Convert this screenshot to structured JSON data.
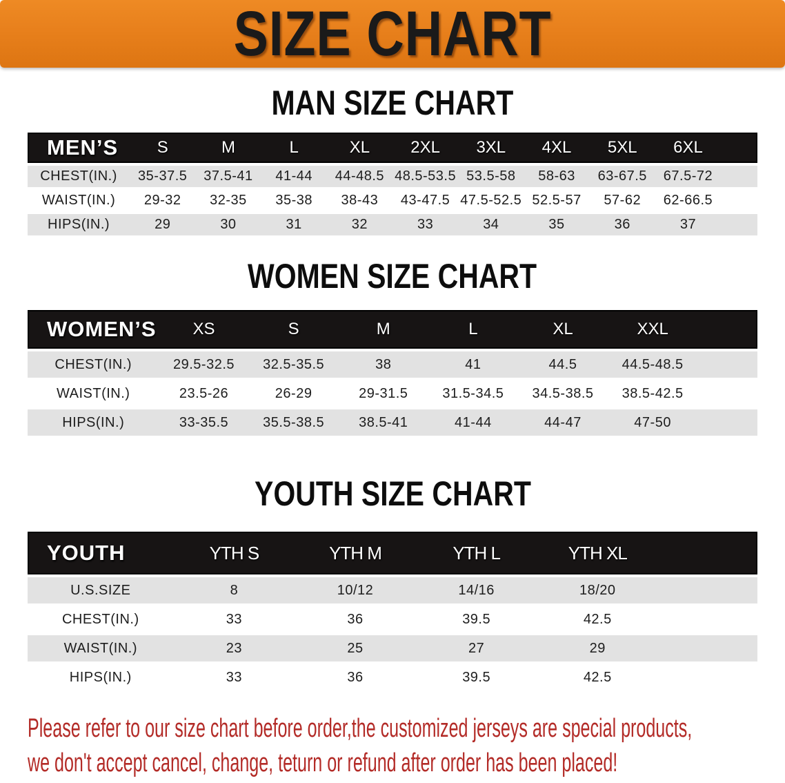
{
  "banner": {
    "title": "SIZE CHART",
    "background_color": "#E8801C",
    "title_color": "#1A1A1A"
  },
  "sections": [
    {
      "id": "men",
      "title": "MAN SIZE CHART",
      "header_label": "MEN’S",
      "columns": [
        "S",
        "M",
        "L",
        "XL",
        "2XL",
        "3XL",
        "4XL",
        "5XL",
        "6XL"
      ],
      "rows": [
        {
          "label": "CHEST(IN.)",
          "values": [
            "35-37.5",
            "37.5-41",
            "41-44",
            "44-48.5",
            "48.5-53.5",
            "53.5-58",
            "58-63",
            "63-67.5",
            "67.5-72"
          ]
        },
        {
          "label": "WAIST(IN.)",
          "values": [
            "29-32",
            "32-35",
            "35-38",
            "38-43",
            "43-47.5",
            "47.5-52.5",
            "52.5-57",
            "57-62",
            "62-66.5"
          ]
        },
        {
          "label": "HIPS(IN.)",
          "values": [
            "29",
            "30",
            "31",
            "32",
            "33",
            "34",
            "35",
            "36",
            "37"
          ]
        }
      ]
    },
    {
      "id": "women",
      "title": "WOMEN SIZE CHART",
      "header_label": "WOMEN’S",
      "columns": [
        "XS",
        "S",
        "M",
        "L",
        "XL",
        "XXL"
      ],
      "rows": [
        {
          "label": "CHEST(IN.)",
          "values": [
            "29.5-32.5",
            "32.5-35.5",
            "38",
            "41",
            "44.5",
            "44.5-48.5"
          ]
        },
        {
          "label": "WAIST(IN.)",
          "values": [
            "23.5-26",
            "26-29",
            "29-31.5",
            "31.5-34.5",
            "34.5-38.5",
            "38.5-42.5"
          ]
        },
        {
          "label": "HIPS(IN.)",
          "values": [
            "33-35.5",
            "35.5-38.5",
            "38.5-41",
            "41-44",
            "44-47",
            "47-50"
          ]
        }
      ]
    },
    {
      "id": "youth",
      "title": "YOUTH SIZE CHART",
      "header_label": "YOUTH",
      "columns": [
        "YTH S",
        "YTH M",
        "YTH L",
        "YTH XL"
      ],
      "rows": [
        {
          "label": "U.S.SIZE",
          "values": [
            "8",
            "10/12",
            "14/16",
            "18/20"
          ]
        },
        {
          "label": "CHEST(IN.)",
          "values": [
            "33",
            "36",
            "39.5",
            "42.5"
          ]
        },
        {
          "label": "WAIST(IN.)",
          "values": [
            "23",
            "25",
            "27",
            "29"
          ]
        },
        {
          "label": "HIPS(IN.)",
          "values": [
            "33",
            "36",
            "39.5",
            "42.5"
          ]
        }
      ]
    }
  ],
  "table_colors": {
    "header_bar": "#171414",
    "header_text": "#FFFFFF",
    "shaded_row": "#E2E2E2",
    "plain_row": "#FFFFFF",
    "cell_text": "#1D1D1D"
  },
  "disclaimer": {
    "line1": "Please refer to our size chart before order,the customized jerseys are special products,",
    "line2": "we don't accept cancel, change, teturn or refund after order has been placed!",
    "color": "#B32B27"
  }
}
